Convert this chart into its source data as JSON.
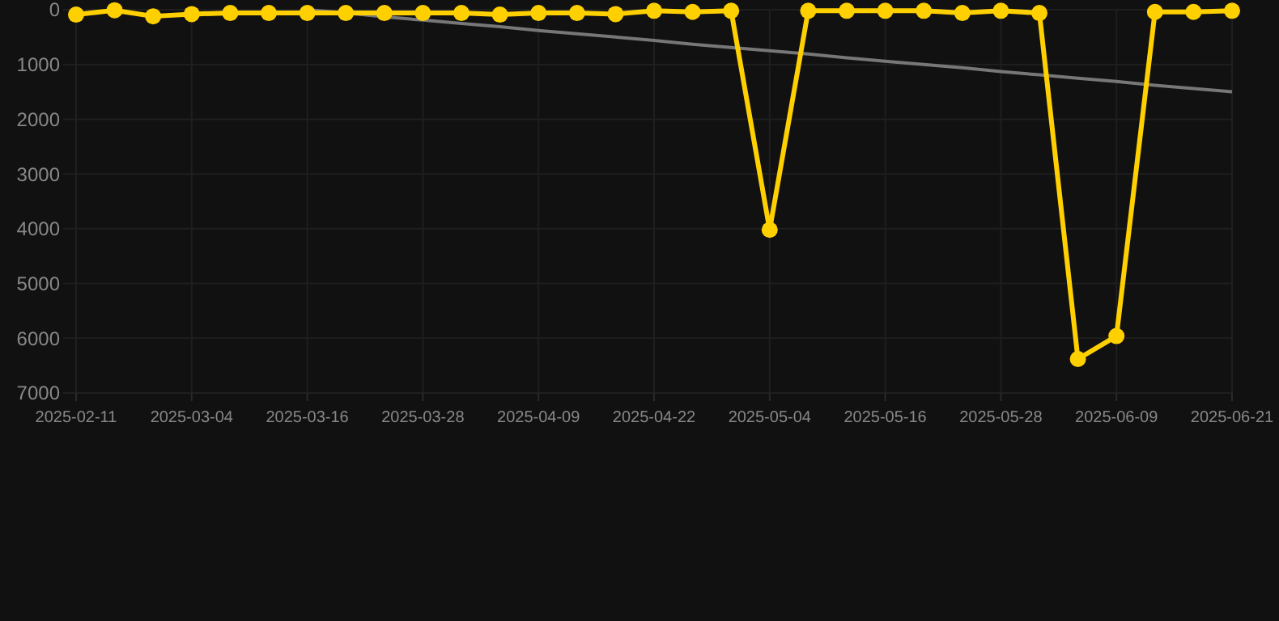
{
  "chart_data": {
    "type": "line",
    "categories": [
      "2025-02-11",
      null,
      null,
      "2025-03-04",
      null,
      null,
      "2025-03-16",
      null,
      null,
      "2025-03-28",
      null,
      null,
      "2025-04-09",
      null,
      null,
      "2025-04-22",
      null,
      null,
      "2025-05-04",
      null,
      null,
      "2025-05-16",
      null,
      null,
      "2025-05-28",
      null,
      null,
      "2025-06-09",
      null,
      null,
      "2025-06-21"
    ],
    "ylim": [
      7000,
      0
    ],
    "yticks": [
      0,
      1000,
      2000,
      3000,
      4000,
      5000,
      6000,
      7000
    ],
    "grid": true,
    "series": [
      {
        "color": "#ffd000",
        "marker": "circle",
        "values": [
          90,
          10,
          120,
          80,
          60,
          60,
          60,
          60,
          60,
          60,
          60,
          90,
          60,
          60,
          80,
          20,
          40,
          20,
          4020,
          20,
          20,
          20,
          20,
          60,
          20,
          60,
          6380,
          5960,
          40,
          40,
          20
        ]
      },
      {
        "color": "#777777",
        "marker": "none",
        "values": [
          null,
          null,
          null,
          null,
          null,
          null,
          0,
          60,
          130,
          190,
          250,
          310,
          380,
          440,
          500,
          560,
          630,
          690,
          750,
          810,
          880,
          940,
          1000,
          1060,
          1130,
          1190,
          1250,
          1310,
          1380,
          1440,
          1500
        ]
      }
    ]
  }
}
